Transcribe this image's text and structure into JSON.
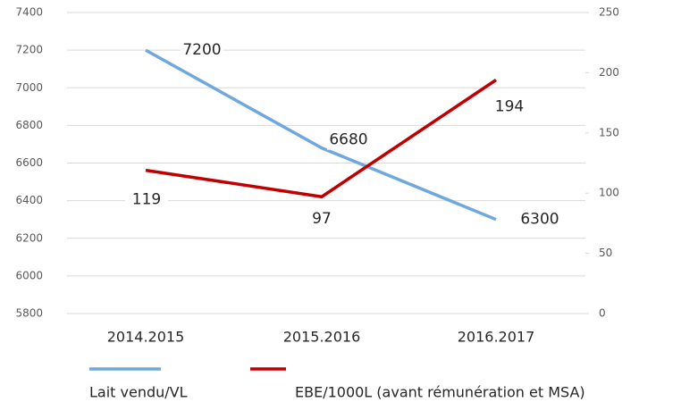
{
  "chart_data": {
    "type": "line",
    "categories": [
      "2014.2015",
      "2015.2016",
      "2016.2017"
    ],
    "series": [
      {
        "name": "Lait vendu/VL",
        "color": "#6fa8dc",
        "values": [
          7200,
          6680,
          6300
        ]
      },
      {
        "name": "EBE/1000L (avant rémunération et MSA)",
        "color": "#c00000",
        "values": [
          119,
          97,
          194
        ],
        "axis": "y2"
      }
    ],
    "ylim": [
      5800,
      7400
    ],
    "yticks": [
      5800,
      6000,
      6200,
      6400,
      6600,
      6800,
      7000,
      7200,
      7400
    ],
    "y2lim": [
      0,
      250
    ],
    "y2ticks": [
      0,
      50,
      100,
      150,
      200,
      250
    ],
    "grid": true,
    "legend": "bottom"
  }
}
